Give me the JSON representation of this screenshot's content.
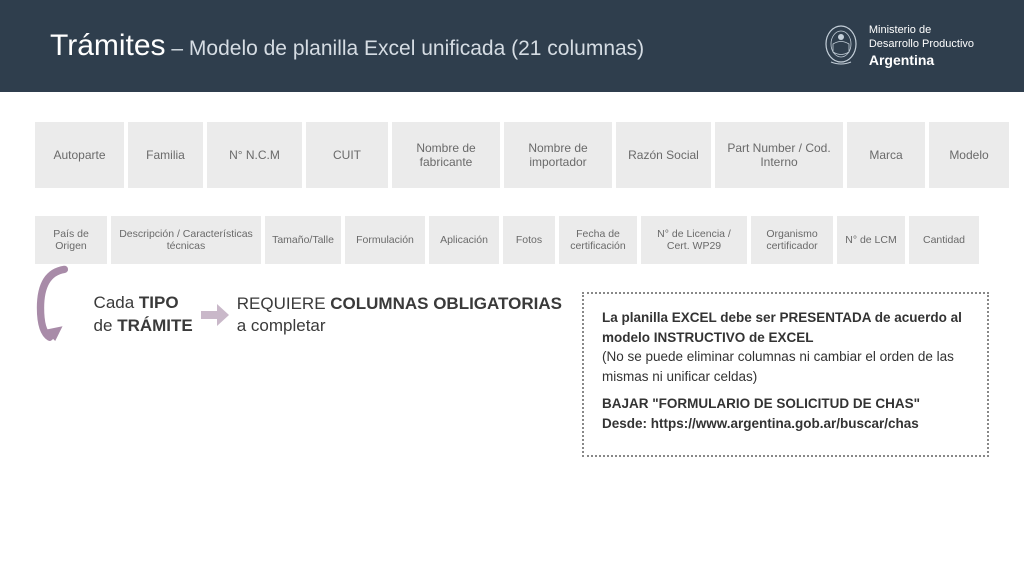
{
  "header": {
    "title_main": "Trámites",
    "title_sep": " – ",
    "title_sub": "Modelo de planilla Excel unificada (21 columnas)",
    "ministry_line1": "Ministerio de",
    "ministry_line2": "Desarrollo Productivo",
    "country": "Argentina"
  },
  "row1": {
    "widths": [
      89,
      75,
      95,
      82,
      108,
      108,
      95,
      128,
      78,
      80
    ],
    "cells": [
      "Autoparte",
      "Familia",
      "N° N.C.M",
      "CUIT",
      "Nombre de fabricante",
      "Nombre de importador",
      "Razón Social",
      "Part Number / Cod. Interno",
      "Marca",
      "Modelo"
    ]
  },
  "row2": {
    "widths": [
      72,
      150,
      76,
      80,
      70,
      52,
      78,
      106,
      82,
      68,
      70
    ],
    "cells": [
      "País de Origen",
      "Descripción / Características técnicas",
      "Tamaño/Talle",
      "Formulación",
      "Aplicación",
      "Fotos",
      "Fecha de certificación",
      "N° de Licencia / Cert. WP29",
      "Organismo certificador",
      "N° de LCM",
      "Cantidad"
    ]
  },
  "bottom": {
    "tipo_pre": "Cada ",
    "tipo_bold1": "TIPO",
    "tipo_mid": "de ",
    "tipo_bold2": "TRÁMITE",
    "req_pre": "REQUIERE ",
    "req_bold": "COLUMNAS OBLIGATORIAS",
    "req_post": " a completar"
  },
  "info": {
    "p1a": "La planilla EXCEL debe ser PRESENTADA de acuerdo al modelo INSTRUCTIVO de EXCEL",
    "p1b": "(No se puede eliminar columnas ni cambiar el orden de las mismas ni unificar celdas)",
    "p2a": "BAJAR \"FORMULARIO DE SOLICITUD DE CHAS\"",
    "p2b": "Desde: https://www.argentina.gob.ar/buscar/chas"
  },
  "colors": {
    "header_bg": "#2f3e4d",
    "cell_bg": "#ebebeb",
    "cell_text": "#6a6a6a",
    "arrow": "#a88ba8"
  }
}
